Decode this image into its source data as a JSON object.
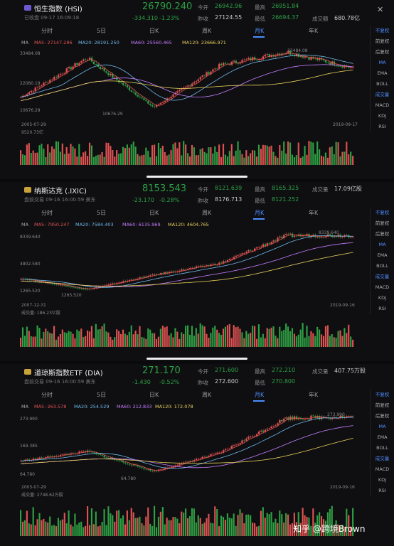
{
  "side_menu": [
    "不复权",
    "前复权",
    "后复权",
    "MA",
    "EMA",
    "BOLL",
    "成交量",
    "MACD",
    "KDJ",
    "RSI"
  ],
  "tabs": [
    "分时",
    "5日",
    "日K",
    "周K",
    "月K",
    "年K"
  ],
  "close_label": "✕",
  "hsi": {
    "name": "恒生指数 (HSI)",
    "status": "已收盘",
    "time": "09-17 16:09:18",
    "price": "26790.240",
    "change": "-334.310",
    "change_pct": "-1.23%",
    "open_label": "今开",
    "open": "26942.96",
    "prev_label": "昨收",
    "prev": "27124.55",
    "high_label": "最高",
    "high": "26951.84",
    "low_label": "最低",
    "low": "26694.37",
    "vol_label": "成交额",
    "vol": "680.78亿",
    "ma": {
      "ma5": "MA5: 27147.286",
      "ma20": "MA20: 28191.250",
      "ma60": "MA60: 25560.465",
      "ma120": "MA120: 23666.971"
    },
    "y_top": "33484.08",
    "y_mid": "22080.19",
    "y_bot": "10676.29",
    "peak_label": "33484.08",
    "trough_label": "10676.29",
    "date_start": "2005-07-29",
    "date_end": "2019-09-17",
    "vol_axis": "9520.73亿"
  },
  "ixic": {
    "name": "纳斯达克 (.IXIC)",
    "status": "盘前交易",
    "time": "09-16 16:00:59 美东",
    "price": "8153.543",
    "change": "-23.170",
    "change_pct": "-0.28%",
    "open_label": "今开",
    "open": "8121.639",
    "prev_label": "昨收",
    "prev": "8176.713",
    "high_label": "最高",
    "high": "8165.325",
    "low_label": "最低",
    "low": "8121.252",
    "vol_label": "成交量",
    "vol": "17.09亿股",
    "ma": {
      "ma5": "MA5: 7950.247",
      "ma20": "MA20: 7584.403",
      "ma60": "MA60: 6135.969",
      "ma120": "MA120: 4604.765"
    },
    "y_top": "8339.640",
    "y_mid": "4802.580",
    "y_bot": "1265.520",
    "peak_label": "8339.640",
    "trough_label": "1265.520",
    "date_start": "2007-12-31",
    "date_end": "2019-09-16",
    "vol_axis": "成交量: 186.23亿股"
  },
  "dia": {
    "name": "道琼斯指数ETF (DIA)",
    "status": "盘前交易",
    "time": "09-16 16:00:59 美东",
    "price": "271.170",
    "change": "-1.430",
    "change_pct": "-0.52%",
    "open_label": "今开",
    "open": "271.600",
    "prev_label": "昨收",
    "prev": "272.600",
    "high_label": "最高",
    "high": "272.210",
    "low_label": "最低",
    "low": "270.800",
    "vol_label": "成交量",
    "vol": "407.75万股",
    "ma": {
      "ma5": "MA5: 263.578",
      "ma20": "MA20: 254.529",
      "ma60": "MA60: 212.833",
      "ma120": "MA120: 172.078"
    },
    "y_top": "273.990",
    "y_mid": "169.385",
    "y_bot": "64.780",
    "peak_label": "273.990",
    "trough_label": "64.780",
    "date_start": "2005-07-29",
    "date_end": "2019-09-16",
    "vol_axis": "成交量: 2748.62万股"
  },
  "ma_prefix": "MA",
  "watermark": "知乎 @跨境Brown",
  "colors": {
    "up": "#e05252",
    "down": "#2ea043",
    "ma5": "#e05252",
    "ma20": "#6fb7e8",
    "ma60": "#c77dff",
    "ma120": "#e8d05a",
    "accent": "#4d8dff"
  },
  "chart_data": [
    {
      "type": "line",
      "title": "恒生指数 (HSI) 月K",
      "x": [
        "2005-07-29",
        "2007-10",
        "2008-10",
        "2015-04",
        "2018-01",
        "2019-09-17"
      ],
      "values": [
        14880,
        31000,
        10676.29,
        28000,
        33484.08,
        26790.24
      ],
      "ylim": [
        10676.29,
        33484.08
      ]
    },
    {
      "type": "line",
      "title": "纳斯达克 (.IXIC) 月K",
      "x": [
        "2007-12-31",
        "2009-03",
        "2013-01",
        "2016-01",
        "2018-08",
        "2019-09-16"
      ],
      "values": [
        2652,
        1265.52,
        3100,
        4600,
        8133,
        8153.543
      ],
      "ylim": [
        1265.52,
        8339.64
      ]
    },
    {
      "type": "line",
      "title": "道琼斯指数ETF (DIA) 月K",
      "x": [
        "2005-07-29",
        "2007-10",
        "2009-03",
        "2013-01",
        "2018-01",
        "2019-09-16"
      ],
      "values": [
        104,
        140,
        64.78,
        135,
        266,
        271.17
      ],
      "ylim": [
        64.78,
        273.99
      ]
    }
  ]
}
